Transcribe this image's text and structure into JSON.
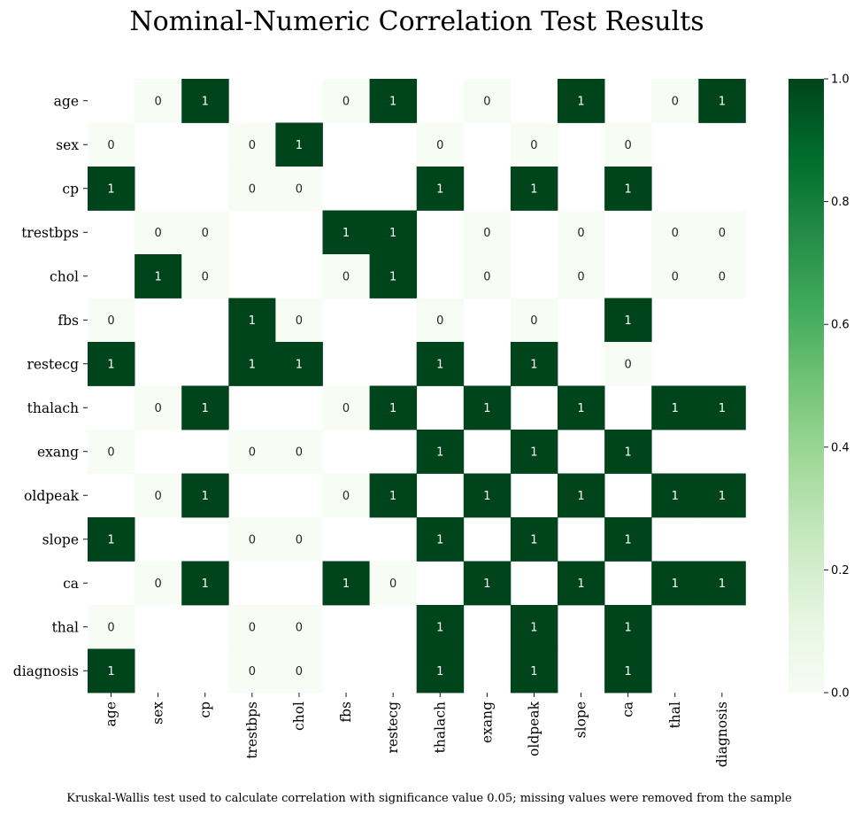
{
  "chart_data": {
    "type": "heatmap",
    "title": "Nominal-Numeric Correlation Test Results",
    "caption": "Kruskal-Wallis test used to calculate correlation with significance value 0.05; missing values were removed from the sample",
    "rows": [
      "age",
      "sex",
      "cp",
      "trestbps",
      "chol",
      "fbs",
      "restecg",
      "thalach",
      "exang",
      "oldpeak",
      "slope",
      "ca",
      "thal",
      "diagnosis"
    ],
    "cols": [
      "age",
      "sex",
      "cp",
      "trestbps",
      "chol",
      "fbs",
      "restecg",
      "thalach",
      "exang",
      "oldpeak",
      "slope",
      "ca",
      "thal",
      "diagnosis"
    ],
    "values": [
      [
        null,
        0,
        1,
        null,
        null,
        0,
        1,
        null,
        0,
        null,
        1,
        null,
        0,
        1
      ],
      [
        0,
        null,
        null,
        0,
        1,
        null,
        null,
        0,
        null,
        0,
        null,
        0,
        null,
        null
      ],
      [
        1,
        null,
        null,
        0,
        0,
        null,
        null,
        1,
        null,
        1,
        null,
        1,
        null,
        null
      ],
      [
        null,
        0,
        0,
        null,
        null,
        1,
        1,
        null,
        0,
        null,
        0,
        null,
        0,
        0
      ],
      [
        null,
        1,
        0,
        null,
        null,
        0,
        1,
        null,
        0,
        null,
        0,
        null,
        0,
        0
      ],
      [
        0,
        null,
        null,
        1,
        0,
        null,
        null,
        0,
        null,
        0,
        null,
        1,
        null,
        null
      ],
      [
        1,
        null,
        null,
        1,
        1,
        null,
        null,
        1,
        null,
        1,
        null,
        0,
        null,
        null
      ],
      [
        null,
        0,
        1,
        null,
        null,
        0,
        1,
        null,
        1,
        null,
        1,
        null,
        1,
        1
      ],
      [
        0,
        null,
        null,
        0,
        0,
        null,
        null,
        1,
        null,
        1,
        null,
        1,
        null,
        null
      ],
      [
        null,
        0,
        1,
        null,
        null,
        0,
        1,
        null,
        1,
        null,
        1,
        null,
        1,
        1
      ],
      [
        1,
        null,
        null,
        0,
        0,
        null,
        null,
        1,
        null,
        1,
        null,
        1,
        null,
        null
      ],
      [
        null,
        0,
        1,
        null,
        null,
        1,
        0,
        null,
        1,
        null,
        1,
        null,
        1,
        1
      ],
      [
        0,
        null,
        null,
        0,
        0,
        null,
        null,
        1,
        null,
        1,
        null,
        1,
        null,
        null
      ],
      [
        1,
        null,
        null,
        0,
        0,
        null,
        null,
        1,
        null,
        1,
        null,
        1,
        null,
        null
      ]
    ],
    "colorbar": {
      "range": [
        0,
        1
      ],
      "ticks": [
        "0.0",
        "0.2",
        "0.4",
        "0.6",
        "0.8",
        "1.0"
      ],
      "colormap": "Greens"
    },
    "colors": {
      "low": "#f7fcf5",
      "high": "#00441b"
    }
  }
}
